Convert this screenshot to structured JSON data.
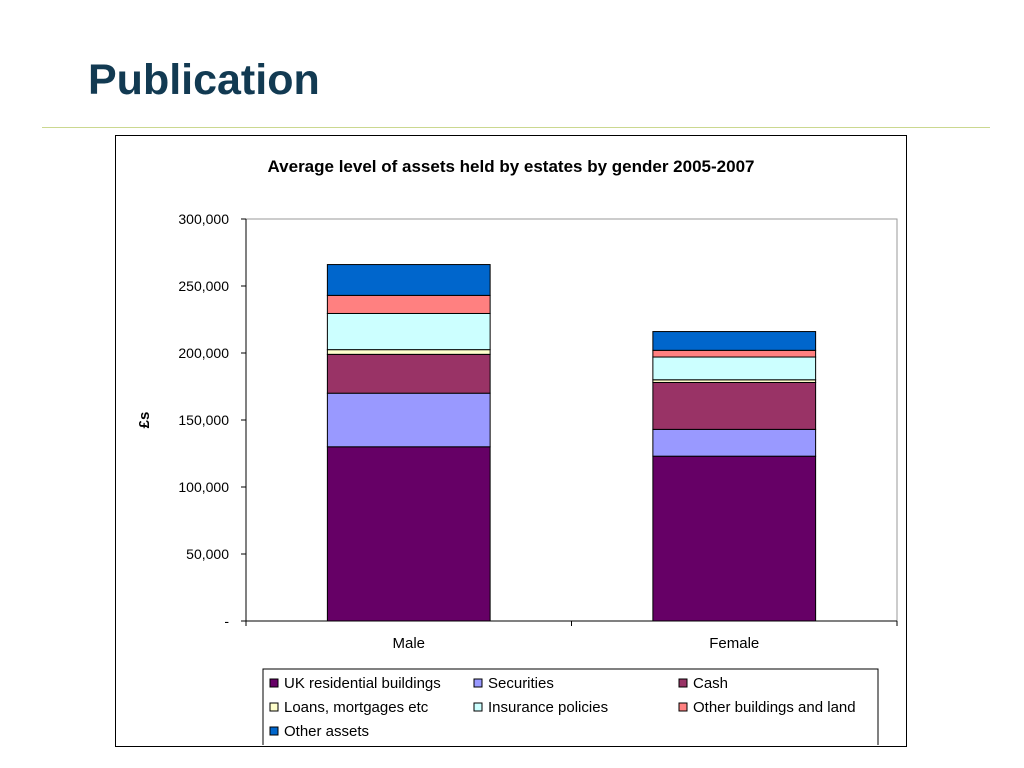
{
  "slide": {
    "title": "Publication"
  },
  "colors": {
    "UK residential buildings": "#660066",
    "Securities": "#9999ff",
    "Cash": "#993366",
    "Loans, mortgages etc": "#ffffcc",
    "Insurance policies": "#ccffff",
    "Other buildings and land": "#ff8080",
    "Other assets": "#0066cc"
  },
  "chart_data": {
    "type": "bar",
    "stacked": true,
    "title": "Average level of assets held by estates by gender 2005-2007",
    "xlabel": "",
    "ylabel": "£s",
    "ylim": [
      0,
      300000
    ],
    "yticks": [
      0,
      50000,
      100000,
      150000,
      200000,
      250000,
      300000
    ],
    "ytick_labels": [
      "-",
      "50,000",
      "100,000",
      "150,000",
      "200,000",
      "250,000",
      "300,000"
    ],
    "categories": [
      "Male",
      "Female"
    ],
    "series": [
      {
        "name": "UK residential buildings",
        "values": [
          130000,
          123000
        ]
      },
      {
        "name": "Securities",
        "values": [
          40000,
          20000
        ]
      },
      {
        "name": "Cash",
        "values": [
          29000,
          35000
        ]
      },
      {
        "name": "Loans, mortgages etc",
        "values": [
          3500,
          2000
        ]
      },
      {
        "name": "Insurance policies",
        "values": [
          27000,
          17000
        ]
      },
      {
        "name": "Other buildings and land",
        "values": [
          13500,
          5000
        ]
      },
      {
        "name": "Other assets",
        "values": [
          23000,
          14000
        ]
      }
    ],
    "grid": false,
    "legend_position": "bottom"
  }
}
